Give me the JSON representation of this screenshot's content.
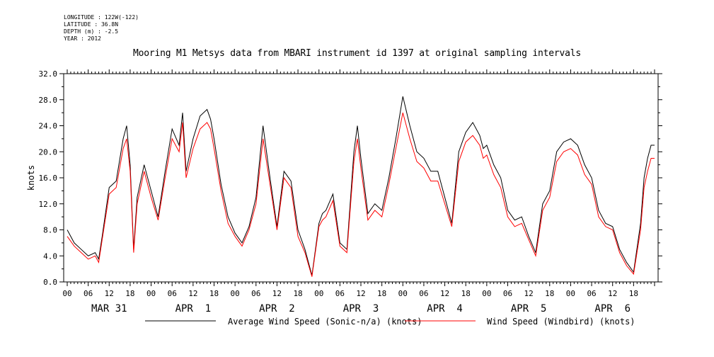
{
  "header": {
    "meta": [
      "LONGITUDE : 122W(-122)",
      "LATITUDE : 36.8N",
      "DEPTH (m) : -2.5",
      "YEAR : 2012"
    ]
  },
  "chart_data": {
    "type": "line",
    "title": "Mooring M1 Metsys data from MBARI instrument id 1397 at original sampling intervals",
    "ylabel": "knots",
    "xlabel": "",
    "ylim": [
      0,
      32
    ],
    "yticks": [
      0.0,
      4.0,
      8.0,
      12.0,
      16.0,
      20.0,
      24.0,
      28.0,
      32.0
    ],
    "ytick_labels": [
      "0.0",
      "4.0",
      "8.0",
      "12.0",
      "16.0",
      "20.0",
      "24.0",
      "28.0",
      "32.0"
    ],
    "xlim_hours": [
      0,
      168
    ],
    "hour_ticks": [
      "00",
      "06",
      "12",
      "18",
      "00",
      "06",
      "12",
      "18",
      "00",
      "06",
      "12",
      "18",
      "00",
      "06",
      "12",
      "18",
      "00",
      "06",
      "12",
      "18",
      "00",
      "06",
      "12",
      "18",
      "00",
      "06",
      "12",
      "18"
    ],
    "day_labels": [
      "MAR 31",
      "APR  1",
      "APR  2",
      "APR  3",
      "APR  4",
      "APR  5",
      "APR  6"
    ],
    "series": [
      {
        "name": "Average Wind Speed (Sonic-n/a) (knots)",
        "color": "#000000",
        "x": [
          0,
          2,
          4,
          6,
          8,
          9,
          10,
          12,
          14,
          16,
          17,
          18,
          19,
          20,
          22,
          24,
          26,
          28,
          30,
          32,
          33,
          34,
          36,
          38,
          40,
          41,
          42,
          44,
          46,
          48,
          50,
          52,
          54,
          56,
          58,
          60,
          62,
          64,
          66,
          68,
          70,
          72,
          73,
          74,
          76,
          78,
          80,
          82,
          83,
          84,
          86,
          88,
          90,
          92,
          94,
          96,
          98,
          100,
          102,
          104,
          106,
          108,
          110,
          112,
          114,
          116,
          118,
          119,
          120,
          122,
          124,
          126,
          128,
          130,
          132,
          134,
          136,
          138,
          140,
          142,
          144,
          146,
          148,
          150,
          152,
          154,
          156,
          158,
          160,
          162,
          164,
          165,
          166,
          167,
          168
        ],
        "y": [
          8.0,
          6.0,
          5.0,
          4.0,
          4.5,
          3.5,
          7.0,
          14.5,
          15.5,
          22.0,
          24.0,
          18.0,
          5.0,
          13.0,
          18.0,
          14.0,
          10.0,
          17.0,
          23.5,
          21.0,
          26.0,
          17.0,
          22.0,
          25.5,
          26.5,
          25.0,
          22.0,
          15.0,
          10.0,
          7.5,
          6.0,
          8.5,
          13.0,
          24.0,
          16.0,
          8.5,
          17.0,
          15.5,
          8.0,
          5.0,
          1.0,
          9.0,
          10.5,
          11.0,
          13.5,
          6.0,
          5.0,
          20.0,
          24.0,
          19.0,
          10.5,
          12.0,
          11.0,
          16.0,
          22.0,
          28.5,
          24.0,
          20.0,
          19.0,
          17.0,
          17.0,
          13.0,
          9.0,
          20.0,
          23.0,
          24.5,
          22.5,
          20.5,
          21.0,
          18.0,
          16.0,
          11.0,
          9.5,
          10.0,
          7.0,
          4.5,
          12.0,
          14.0,
          20.0,
          21.5,
          22.0,
          21.0,
          18.0,
          16.0,
          11.0,
          9.0,
          8.5,
          5.0,
          3.0,
          1.5,
          9.0,
          16.0,
          19.0,
          21.0,
          21.0
        ]
      },
      {
        "name": "Wind Speed (Windbird) (knots)",
        "color": "#ff0000",
        "x": [
          0,
          2,
          4,
          6,
          8,
          9,
          10,
          12,
          14,
          16,
          17,
          18,
          19,
          20,
          22,
          24,
          26,
          28,
          30,
          32,
          33,
          34,
          36,
          38,
          40,
          41,
          42,
          44,
          46,
          48,
          50,
          52,
          54,
          56,
          58,
          60,
          62,
          64,
          66,
          68,
          70,
          72,
          73,
          74,
          76,
          78,
          80,
          82,
          83,
          84,
          86,
          88,
          90,
          92,
          94,
          96,
          98,
          100,
          102,
          104,
          106,
          108,
          110,
          112,
          114,
          116,
          118,
          119,
          120,
          122,
          124,
          126,
          128,
          130,
          132,
          134,
          136,
          138,
          140,
          142,
          144,
          146,
          148,
          150,
          152,
          154,
          156,
          158,
          160,
          162,
          164,
          165,
          166,
          167,
          168
        ],
        "y": [
          7.0,
          5.5,
          4.5,
          3.5,
          4.0,
          3.0,
          6.5,
          13.5,
          14.5,
          20.5,
          22.0,
          17.0,
          4.5,
          12.0,
          17.0,
          13.0,
          9.5,
          16.0,
          22.0,
          20.0,
          24.5,
          16.0,
          20.5,
          23.5,
          24.5,
          23.5,
          20.5,
          14.0,
          9.0,
          7.0,
          5.5,
          8.0,
          12.0,
          22.0,
          15.0,
          8.0,
          16.0,
          14.5,
          7.0,
          4.5,
          0.8,
          8.5,
          9.5,
          10.0,
          12.5,
          5.5,
          4.5,
          18.5,
          22.0,
          17.5,
          9.5,
          11.0,
          10.0,
          15.0,
          20.5,
          26.0,
          22.0,
          18.5,
          17.5,
          15.5,
          15.5,
          12.0,
          8.5,
          18.5,
          21.5,
          22.5,
          21.0,
          19.0,
          19.5,
          16.5,
          14.5,
          10.0,
          8.5,
          9.0,
          6.5,
          4.0,
          11.0,
          13.0,
          18.5,
          20.0,
          20.5,
          19.5,
          16.5,
          15.0,
          10.0,
          8.5,
          8.0,
          4.5,
          2.5,
          1.2,
          8.0,
          14.5,
          17.0,
          19.0,
          19.0
        ]
      }
    ],
    "legend": {
      "placement": "bottom"
    }
  }
}
